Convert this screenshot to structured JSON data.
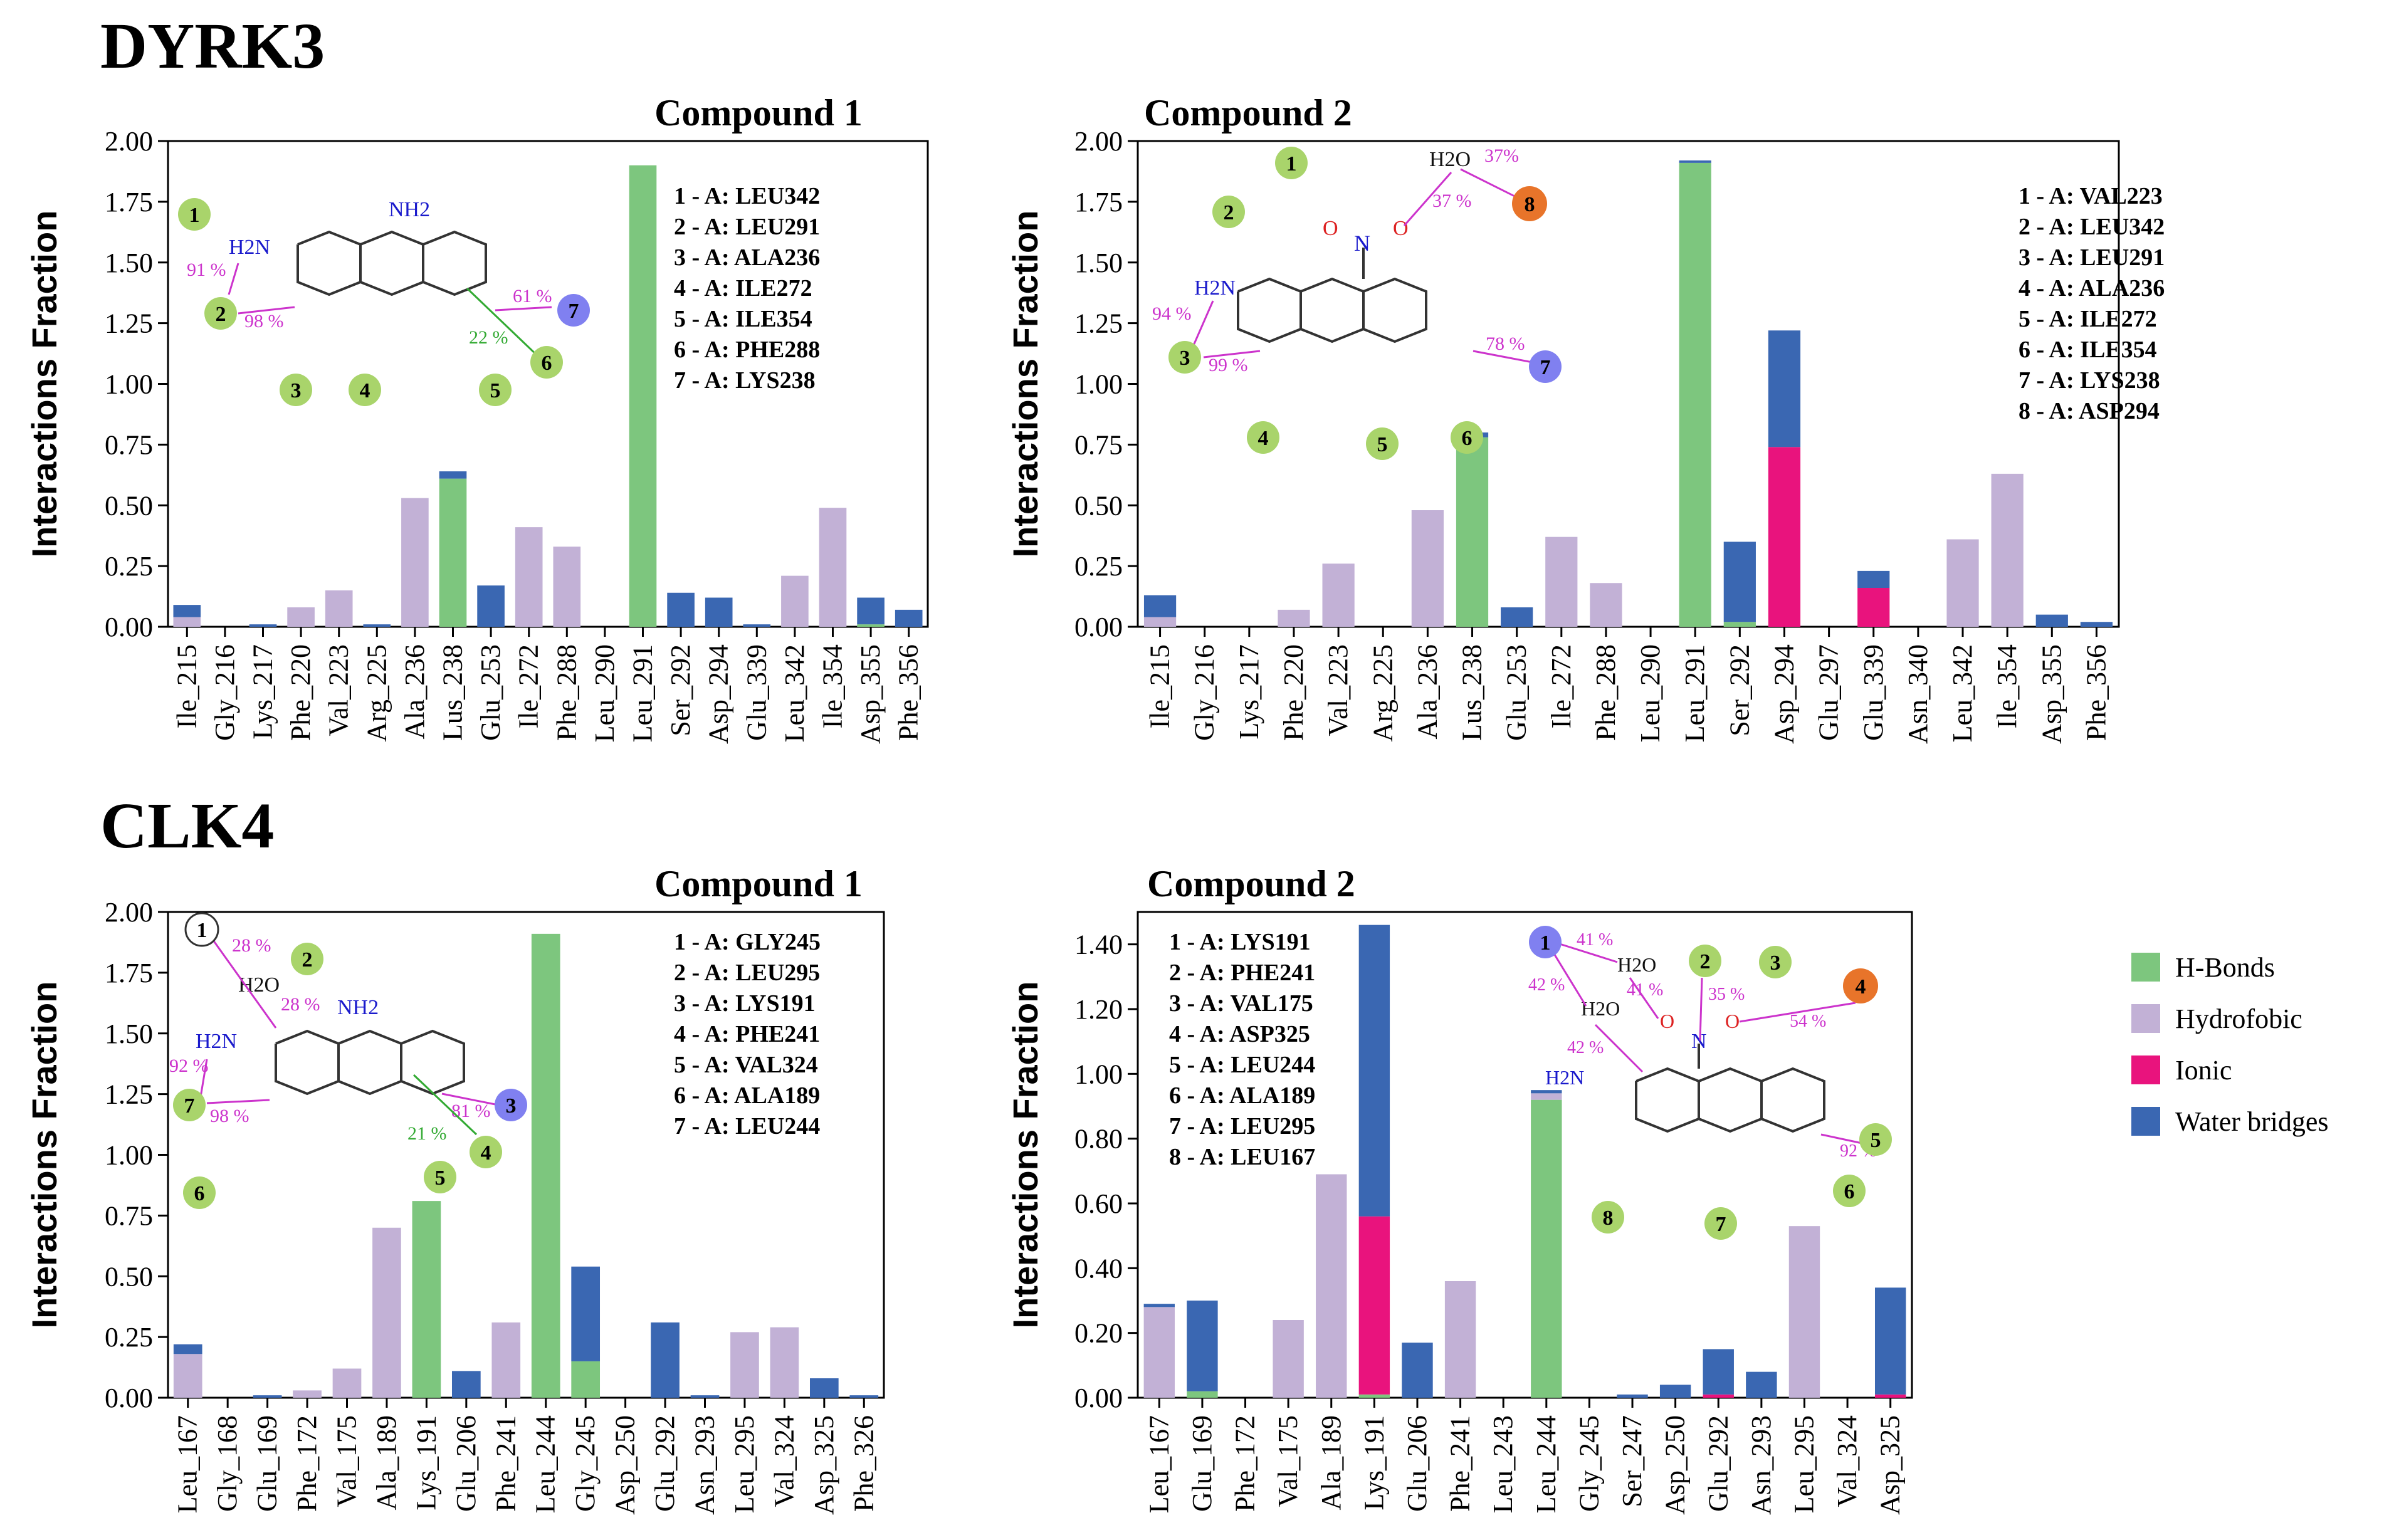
{
  "sections": [
    "DYRK3",
    "CLK4"
  ],
  "colors": {
    "hbond": "#7dc67e",
    "hydro": "#c2b1d6",
    "ionic": "#e9137d",
    "water": "#3a67b2",
    "axis": "#000000"
  },
  "legend": [
    {
      "key": "hbond",
      "label": "H-Bonds"
    },
    {
      "key": "hydro",
      "label": "Hydrofobic"
    },
    {
      "key": "ionic",
      "label": "Ionic"
    },
    {
      "key": "water",
      "label": "Water bridges"
    }
  ],
  "chart_data": [
    {
      "type": "bar",
      "stacked": true,
      "section": "DYRK3",
      "title": "Compound 1",
      "ylabel": "Interactions Fraction",
      "ylim": [
        0,
        2.0
      ],
      "yticks": [
        "0.00",
        "0.25",
        "0.50",
        "0.75",
        "1.00",
        "1.25",
        "1.50",
        "1.75",
        "2.00"
      ],
      "categories": [
        "Ile_215",
        "Gly_216",
        "Lys_217",
        "Phe_220",
        "Val_223",
        "Arg_225",
        "Ala_236",
        "Lus_238",
        "Glu_253",
        "Ile_272",
        "Phe_288",
        "Leu_290",
        "Leu_291",
        "Ser_292",
        "Asp_294",
        "Glu_339",
        "Leu_342",
        "Ile_354",
        "Asp_355",
        "Phe_356"
      ],
      "series": [
        {
          "name": "H-Bonds",
          "key": "hbond",
          "values": [
            0,
            0,
            0,
            0,
            0,
            0,
            0,
            0.61,
            0,
            0,
            0,
            0,
            1.9,
            0,
            0,
            0,
            0,
            0,
            0.01,
            0
          ]
        },
        {
          "name": "Hydrofobic",
          "key": "hydro",
          "values": [
            0.04,
            0,
            0,
            0.08,
            0.15,
            0,
            0.53,
            0,
            0,
            0.41,
            0.33,
            0,
            0,
            0,
            0,
            0,
            0.21,
            0.49,
            0,
            0
          ]
        },
        {
          "name": "Ionic",
          "key": "ionic",
          "values": [
            0,
            0,
            0,
            0,
            0,
            0,
            0,
            0,
            0,
            0,
            0,
            0,
            0,
            0,
            0,
            0,
            0,
            0,
            0,
            0
          ]
        },
        {
          "name": "Water bridges",
          "key": "water",
          "values": [
            0.05,
            0,
            0.01,
            0,
            0,
            0.01,
            0,
            0.03,
            0.17,
            0,
            0,
            0,
            0,
            0.14,
            0.12,
            0.01,
            0,
            0,
            0.11,
            0.07
          ]
        }
      ],
      "annotations": [
        "1 - A: LEU342",
        "2 - A: LEU291",
        "3 - A: ALA236",
        "4 - A: ILE272",
        "5 - A: ILE354",
        "6 - A: PHE288",
        "7 - A: LYS238"
      ],
      "molecule_labels": {
        "nh2_top": "NH2",
        "h2n": "H2N",
        "p1": "91 %",
        "p2": "98 %",
        "p3": "61 %",
        "p4": "22 %"
      }
    },
    {
      "type": "bar",
      "stacked": true,
      "section": "DYRK3",
      "title": "Compound 2",
      "ylabel": "Interactions Fraction",
      "ylim": [
        0,
        2.0
      ],
      "yticks": [
        "0.00",
        "0.25",
        "0.50",
        "0.75",
        "1.00",
        "1.25",
        "1.50",
        "1.75",
        "2.00"
      ],
      "categories": [
        "Ile_215",
        "Gly_216",
        "Lys_217",
        "Phe_220",
        "Val_223",
        "Arg_225",
        "Ala_236",
        "Lus_238",
        "Glu_253",
        "Ile_272",
        "Phe_288",
        "Leu_290",
        "Leu_291",
        "Ser_292",
        "Asp_294",
        "Glu_297",
        "Glu_339",
        "Asn_340",
        "Leu_342",
        "Ile_354",
        "Asp_355",
        "Phe_356"
      ],
      "series": [
        {
          "name": "H-Bonds",
          "key": "hbond",
          "values": [
            0,
            0,
            0,
            0,
            0,
            0,
            0,
            0.78,
            0,
            0,
            0,
            0,
            1.91,
            0.02,
            0,
            0,
            0,
            0,
            0,
            0,
            0,
            0
          ]
        },
        {
          "name": "Hydrofobic",
          "key": "hydro",
          "values": [
            0.04,
            0,
            0,
            0.07,
            0.26,
            0,
            0.48,
            0,
            0,
            0.37,
            0.18,
            0,
            0,
            0,
            0,
            0,
            0,
            0,
            0.36,
            0.63,
            0,
            0
          ]
        },
        {
          "name": "Ionic",
          "key": "ionic",
          "values": [
            0,
            0,
            0,
            0,
            0,
            0,
            0,
            0,
            0,
            0,
            0,
            0,
            0,
            0,
            0.74,
            0,
            0.16,
            0,
            0,
            0,
            0,
            0
          ]
        },
        {
          "name": "Water bridges",
          "key": "water",
          "values": [
            0.09,
            0,
            0,
            0,
            0,
            0,
            0,
            0.02,
            0.08,
            0,
            0,
            0,
            0.01,
            0.33,
            0.48,
            0,
            0.07,
            0,
            0,
            0,
            0.05,
            0.02
          ]
        }
      ],
      "annotations": [
        "1 - A: VAL223",
        "2 - A: LEU342",
        "3 - A: LEU291",
        "4 - A: ALA236",
        "5 - A: ILE272",
        "6 - A: ILE354",
        "7 - A: LYS238",
        "8 - A: ASP294"
      ],
      "molecule_labels": {
        "h2o": "H2O",
        "h2n": "H2N",
        "p1": "37%",
        "p2": "37 %",
        "p3": "94 %",
        "p4": "99 %",
        "p5": "78 %"
      }
    },
    {
      "type": "bar",
      "stacked": true,
      "section": "CLK4",
      "title": "Compound 1",
      "ylabel": "Interactions Fraction",
      "ylim": [
        0,
        2.0
      ],
      "yticks": [
        "0.00",
        "0.25",
        "0.50",
        "0.75",
        "1.00",
        "1.25",
        "1.50",
        "1.75",
        "2.00"
      ],
      "categories": [
        "Leu_167",
        "Gly_168",
        "Glu_169",
        "Phe_172",
        "Val_175",
        "Ala_189",
        "Lys_191",
        "Glu_206",
        "Phe_241",
        "Leu_244",
        "Gly_245",
        "Asp_250",
        "Glu_292",
        "Asn_293",
        "Leu_295",
        "Val_324",
        "Asp_325",
        "Phe_326"
      ],
      "series": [
        {
          "name": "H-Bonds",
          "key": "hbond",
          "values": [
            0,
            0,
            0,
            0,
            0,
            0,
            0.81,
            0,
            0,
            1.91,
            0.15,
            0,
            0,
            0,
            0,
            0,
            0,
            0
          ]
        },
        {
          "name": "Hydrofobic",
          "key": "hydro",
          "values": [
            0.18,
            0,
            0,
            0.03,
            0.12,
            0.7,
            0,
            0,
            0.31,
            0,
            0,
            0,
            0,
            0,
            0.27,
            0.29,
            0,
            0
          ]
        },
        {
          "name": "Ionic",
          "key": "ionic",
          "values": [
            0,
            0,
            0,
            0,
            0,
            0,
            0,
            0,
            0,
            0,
            0,
            0,
            0,
            0,
            0,
            0,
            0,
            0
          ]
        },
        {
          "name": "Water bridges",
          "key": "water",
          "values": [
            0.04,
            0,
            0.01,
            0,
            0,
            0,
            0,
            0.11,
            0,
            0,
            0.39,
            0,
            0.31,
            0.01,
            0,
            0,
            0.08,
            0.01
          ]
        }
      ],
      "annotations": [
        "1 - A: GLY245",
        "2 - A: LEU295",
        "3 - A: LYS191",
        "4 - A: PHE241",
        "5 - A: VAL324",
        "6 - A: ALA189",
        "7 - A: LEU244"
      ],
      "molecule_labels": {
        "h2o": "H2O",
        "nh2_top": "NH2",
        "h2n": "H2N",
        "p1": "28 %",
        "p2": "28 %",
        "p3": "92 %",
        "p4": "98 %",
        "p5": "81 %",
        "p6": "21 %"
      }
    },
    {
      "type": "bar",
      "stacked": true,
      "section": "CLK4",
      "title": "Compound 2",
      "ylabel": "Interactions Fraction",
      "ylim": [
        0,
        1.5
      ],
      "yticks": [
        "0.00",
        "0.20",
        "0.40",
        "0.60",
        "0.80",
        "1.00",
        "1.20",
        "1.40"
      ],
      "categories": [
        "Leu_167",
        "Glu_169",
        "Phe_172",
        "Val_175",
        "Ala_189",
        "Lys_191",
        "Glu_206",
        "Phe_241",
        "Leu_243",
        "Leu_244",
        "Gly_245",
        "Ser_247",
        "Asp_250",
        "Glu_292",
        "Asn_293",
        "Leu_295",
        "Val_324",
        "Asp_325"
      ],
      "series": [
        {
          "name": "H-Bonds",
          "key": "hbond",
          "values": [
            0,
            0.02,
            0,
            0,
            0,
            0.01,
            0,
            0,
            0,
            0.92,
            0,
            0,
            0,
            0,
            0,
            0,
            0,
            0
          ]
        },
        {
          "name": "Hydrofobic",
          "key": "hydro",
          "values": [
            0.28,
            0,
            0,
            0.24,
            0.69,
            0,
            0,
            0.36,
            0,
            0.02,
            0,
            0,
            0,
            0,
            0,
            0.53,
            0,
            0
          ]
        },
        {
          "name": "Ionic",
          "key": "ionic",
          "values": [
            0,
            0,
            0,
            0,
            0,
            0.55,
            0,
            0,
            0,
            0,
            0,
            0,
            0,
            0.01,
            0,
            0,
            0,
            0.01
          ]
        },
        {
          "name": "Water bridges",
          "key": "water",
          "values": [
            0.01,
            0.28,
            0,
            0,
            0,
            0.9,
            0.17,
            0,
            0,
            0.01,
            0,
            0.01,
            0.04,
            0.14,
            0.08,
            0,
            0,
            0.33
          ]
        }
      ],
      "annotations": [
        "1 - A: LYS191",
        "2 - A: PHE241",
        "3 - A: VAL175",
        "4 - A: ASP325",
        "5 - A: LEU244",
        "6 - A: ALA189",
        "7 - A: LEU295",
        "8 - A: LEU167"
      ],
      "molecule_labels": {
        "h2o_a": "H2O",
        "h2o_b": "H2O",
        "h2n": "H2N",
        "p1": "41 %",
        "p2": "42 %",
        "p3": "41 %",
        "p4": "42 %",
        "p5": "35 %",
        "p6": "54 %",
        "p7": "92 %"
      }
    }
  ]
}
